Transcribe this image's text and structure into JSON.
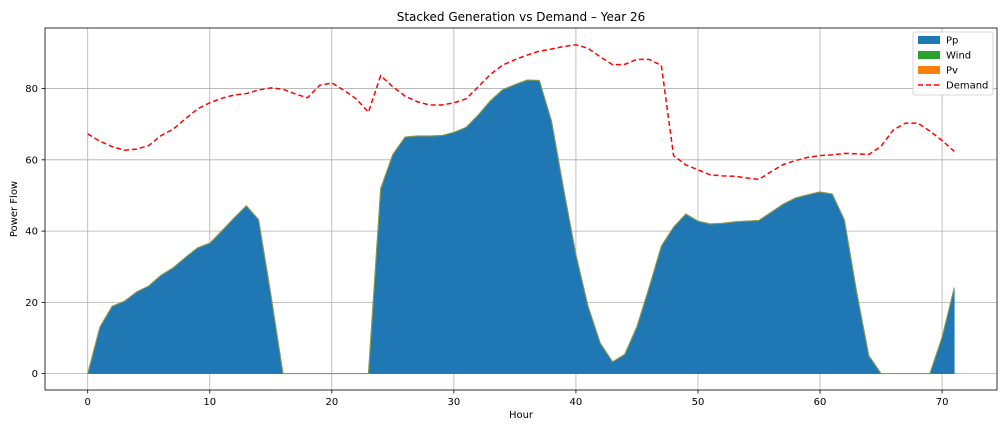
{
  "chart_data": {
    "type": "area",
    "title": "Stacked Generation vs Demand – Year 26",
    "xlabel": "Hour",
    "ylabel": "Power Flow",
    "xlim": [
      -3.5,
      74.5
    ],
    "ylim": [
      -4.6,
      97.0
    ],
    "xticks": [
      0,
      10,
      20,
      30,
      40,
      50,
      60,
      70
    ],
    "yticks": [
      0,
      20,
      40,
      60,
      80
    ],
    "grid": true,
    "legend_position": "top-right",
    "series": [
      {
        "name": "Pp",
        "kind": "stacked-area",
        "color": "#1f77b4",
        "values": [
          0,
          13.1,
          18.9,
          20.3,
          22.9,
          24.6,
          27.6,
          29.7,
          32.6,
          35.3,
          36.6,
          40.1,
          43.7,
          47.1,
          43.2,
          22.3,
          0,
          0,
          0,
          0,
          0,
          0,
          0,
          0,
          51.9,
          61.5,
          66.4,
          66.7,
          66.7,
          66.8,
          67.7,
          69.1,
          72.6,
          76.6,
          79.7,
          81.1,
          82.4,
          82.3,
          70.9,
          51.7,
          33.4,
          18.8,
          8.5,
          3.3,
          5.4,
          13.2,
          24.2,
          35.8,
          41.1,
          44.8,
          42.8,
          42.0,
          42.2,
          42.6,
          42.8,
          43.0,
          45.3,
          47.6,
          49.3,
          50.2,
          51.0,
          50.4,
          43.1,
          22.9,
          5.0,
          0,
          0,
          0,
          0,
          0,
          10.2,
          24.1
        ]
      },
      {
        "name": "Wind",
        "kind": "stacked-area",
        "color": "#2ca02c",
        "values": [
          0,
          0,
          0,
          0,
          0,
          0,
          0,
          0,
          0,
          0,
          0,
          0,
          0,
          0,
          0,
          0,
          0,
          0,
          0,
          0,
          0,
          0,
          0,
          0,
          0,
          0,
          0,
          0,
          0,
          0,
          0,
          0,
          0,
          0,
          0,
          0,
          0,
          0,
          0,
          0,
          0,
          0,
          0,
          0,
          0,
          0,
          0,
          0,
          0,
          0,
          0,
          0,
          0,
          0,
          0,
          0,
          0,
          0,
          0,
          0,
          0,
          0,
          0,
          0,
          0,
          0,
          0,
          0,
          0,
          0,
          0,
          0
        ]
      },
      {
        "name": "Pv",
        "kind": "stacked-area",
        "color": "#ff7f0e",
        "values": [
          0,
          0,
          0,
          0,
          0,
          0,
          0,
          0,
          0,
          0,
          0,
          0,
          0,
          0,
          0,
          0,
          0,
          0,
          0,
          0,
          0,
          0,
          0,
          0,
          0,
          0,
          0,
          0,
          0,
          0,
          0,
          0,
          0,
          0,
          0,
          0,
          0,
          0,
          0,
          0,
          0,
          0,
          0,
          0,
          0,
          0,
          0,
          0,
          0,
          0,
          0,
          0,
          0,
          0,
          0,
          0,
          0,
          0,
          0,
          0,
          0,
          0,
          0,
          0,
          0,
          0,
          0,
          0,
          0,
          0,
          0,
          0
        ]
      },
      {
        "name": "Demand",
        "kind": "dashed-line",
        "color": "#ff0000",
        "values": [
          67.3,
          65.2,
          63.7,
          62.7,
          63.0,
          64.0,
          66.8,
          68.6,
          71.5,
          74.3,
          76.0,
          77.3,
          78.2,
          78.6,
          79.6,
          80.2,
          79.8,
          78.5,
          77.4,
          80.9,
          81.6,
          79.5,
          77.1,
          73.4,
          83.6,
          80.5,
          77.9,
          76.3,
          75.4,
          75.4,
          76.0,
          77.1,
          80.5,
          84.0,
          86.6,
          88.1,
          89.4,
          90.5,
          91.1,
          91.8,
          92.3,
          91.3,
          88.9,
          86.7,
          86.8,
          88.2,
          88.2,
          86.5,
          61.2,
          58.6,
          57.2,
          55.8,
          55.5,
          55.4,
          54.9,
          54.5,
          56.7,
          58.7,
          59.8,
          60.7,
          61.2,
          61.4,
          61.8,
          61.7,
          61.5,
          63.8,
          68.4,
          70.3,
          70.3,
          68.1,
          65.4,
          62.4
        ]
      }
    ]
  }
}
